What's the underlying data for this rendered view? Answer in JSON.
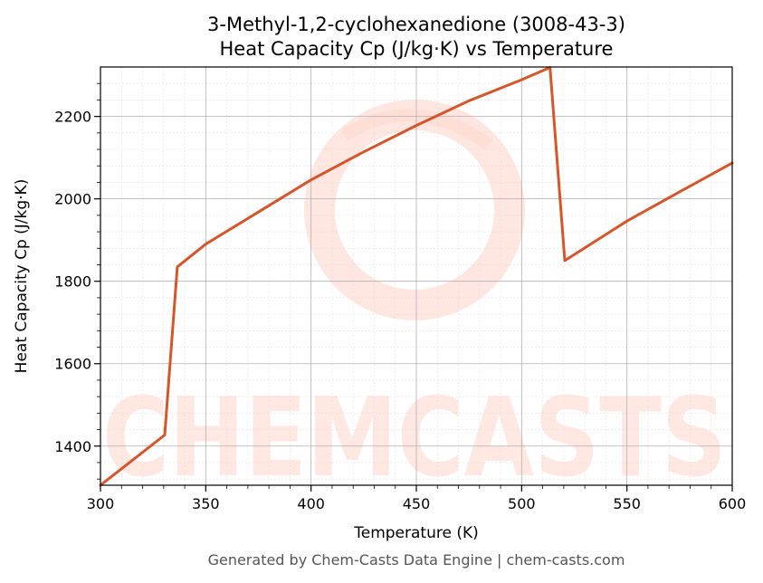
{
  "chart_data": {
    "type": "line",
    "title": "3-Methyl-1,2-cyclohexanedione (3008-43-3)",
    "subtitle": "Heat Capacity Cp (J/kg·K) vs Temperature",
    "xlabel": "Temperature (K)",
    "ylabel": "Heat Capacity Cp (J/kg·K)",
    "xlim": [
      300,
      600
    ],
    "ylim": [
      1305,
      2320
    ],
    "x_ticks": [
      300,
      350,
      400,
      450,
      500,
      550,
      600
    ],
    "y_ticks": [
      1400,
      1600,
      1800,
      2000,
      2200
    ],
    "x_tick_labels": [
      "300",
      "350",
      "400",
      "450",
      "500",
      "550",
      "600"
    ],
    "y_tick_labels": [
      "1400",
      "1600",
      "1800",
      "2000",
      "2200"
    ],
    "grid": true,
    "series": [
      {
        "color": "#d4562a",
        "x": [
          300,
          330.5,
          336.5,
          350,
          375,
          400,
          425,
          450,
          475,
          500,
          513.5,
          520.5,
          550,
          575,
          600
        ],
        "y": [
          1305,
          1427,
          1835,
          1890,
          1968,
          2046,
          2114,
          2178,
          2238,
          2289,
          2319,
          1850,
          1946,
          2017,
          2087
        ]
      }
    ]
  },
  "watermark": {
    "text": "CHEMCASTS",
    "color": "#ffd6cc"
  },
  "footer": {
    "text": "Generated by Chem-Casts Data Engine | chem-casts.com"
  }
}
